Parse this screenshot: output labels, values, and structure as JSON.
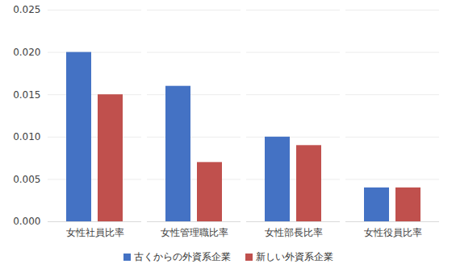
{
  "chart_data": {
    "type": "bar",
    "categories": [
      "女性社員比率",
      "女性管理職比率",
      "女性部長比率",
      "女性役員比率"
    ],
    "series": [
      {
        "name": "古くからの外資系企業",
        "color": "#4472c4",
        "values": [
          0.02,
          0.016,
          0.01,
          0.004
        ]
      },
      {
        "name": "新しい外資系企業",
        "color": "#c0504d",
        "values": [
          0.015,
          0.007,
          0.009,
          0.004
        ]
      }
    ],
    "ylim": [
      0,
      0.025
    ],
    "yticks": [
      {
        "value": 0,
        "label": "0.000"
      },
      {
        "value": 0.005,
        "label": "0.005"
      },
      {
        "value": 0.01,
        "label": "0.010"
      },
      {
        "value": 0.015,
        "label": "0.015"
      },
      {
        "value": 0.02,
        "label": "0.020"
      },
      {
        "value": 0.025,
        "label": "0.025"
      }
    ],
    "grid": true,
    "legend": "bottom"
  }
}
